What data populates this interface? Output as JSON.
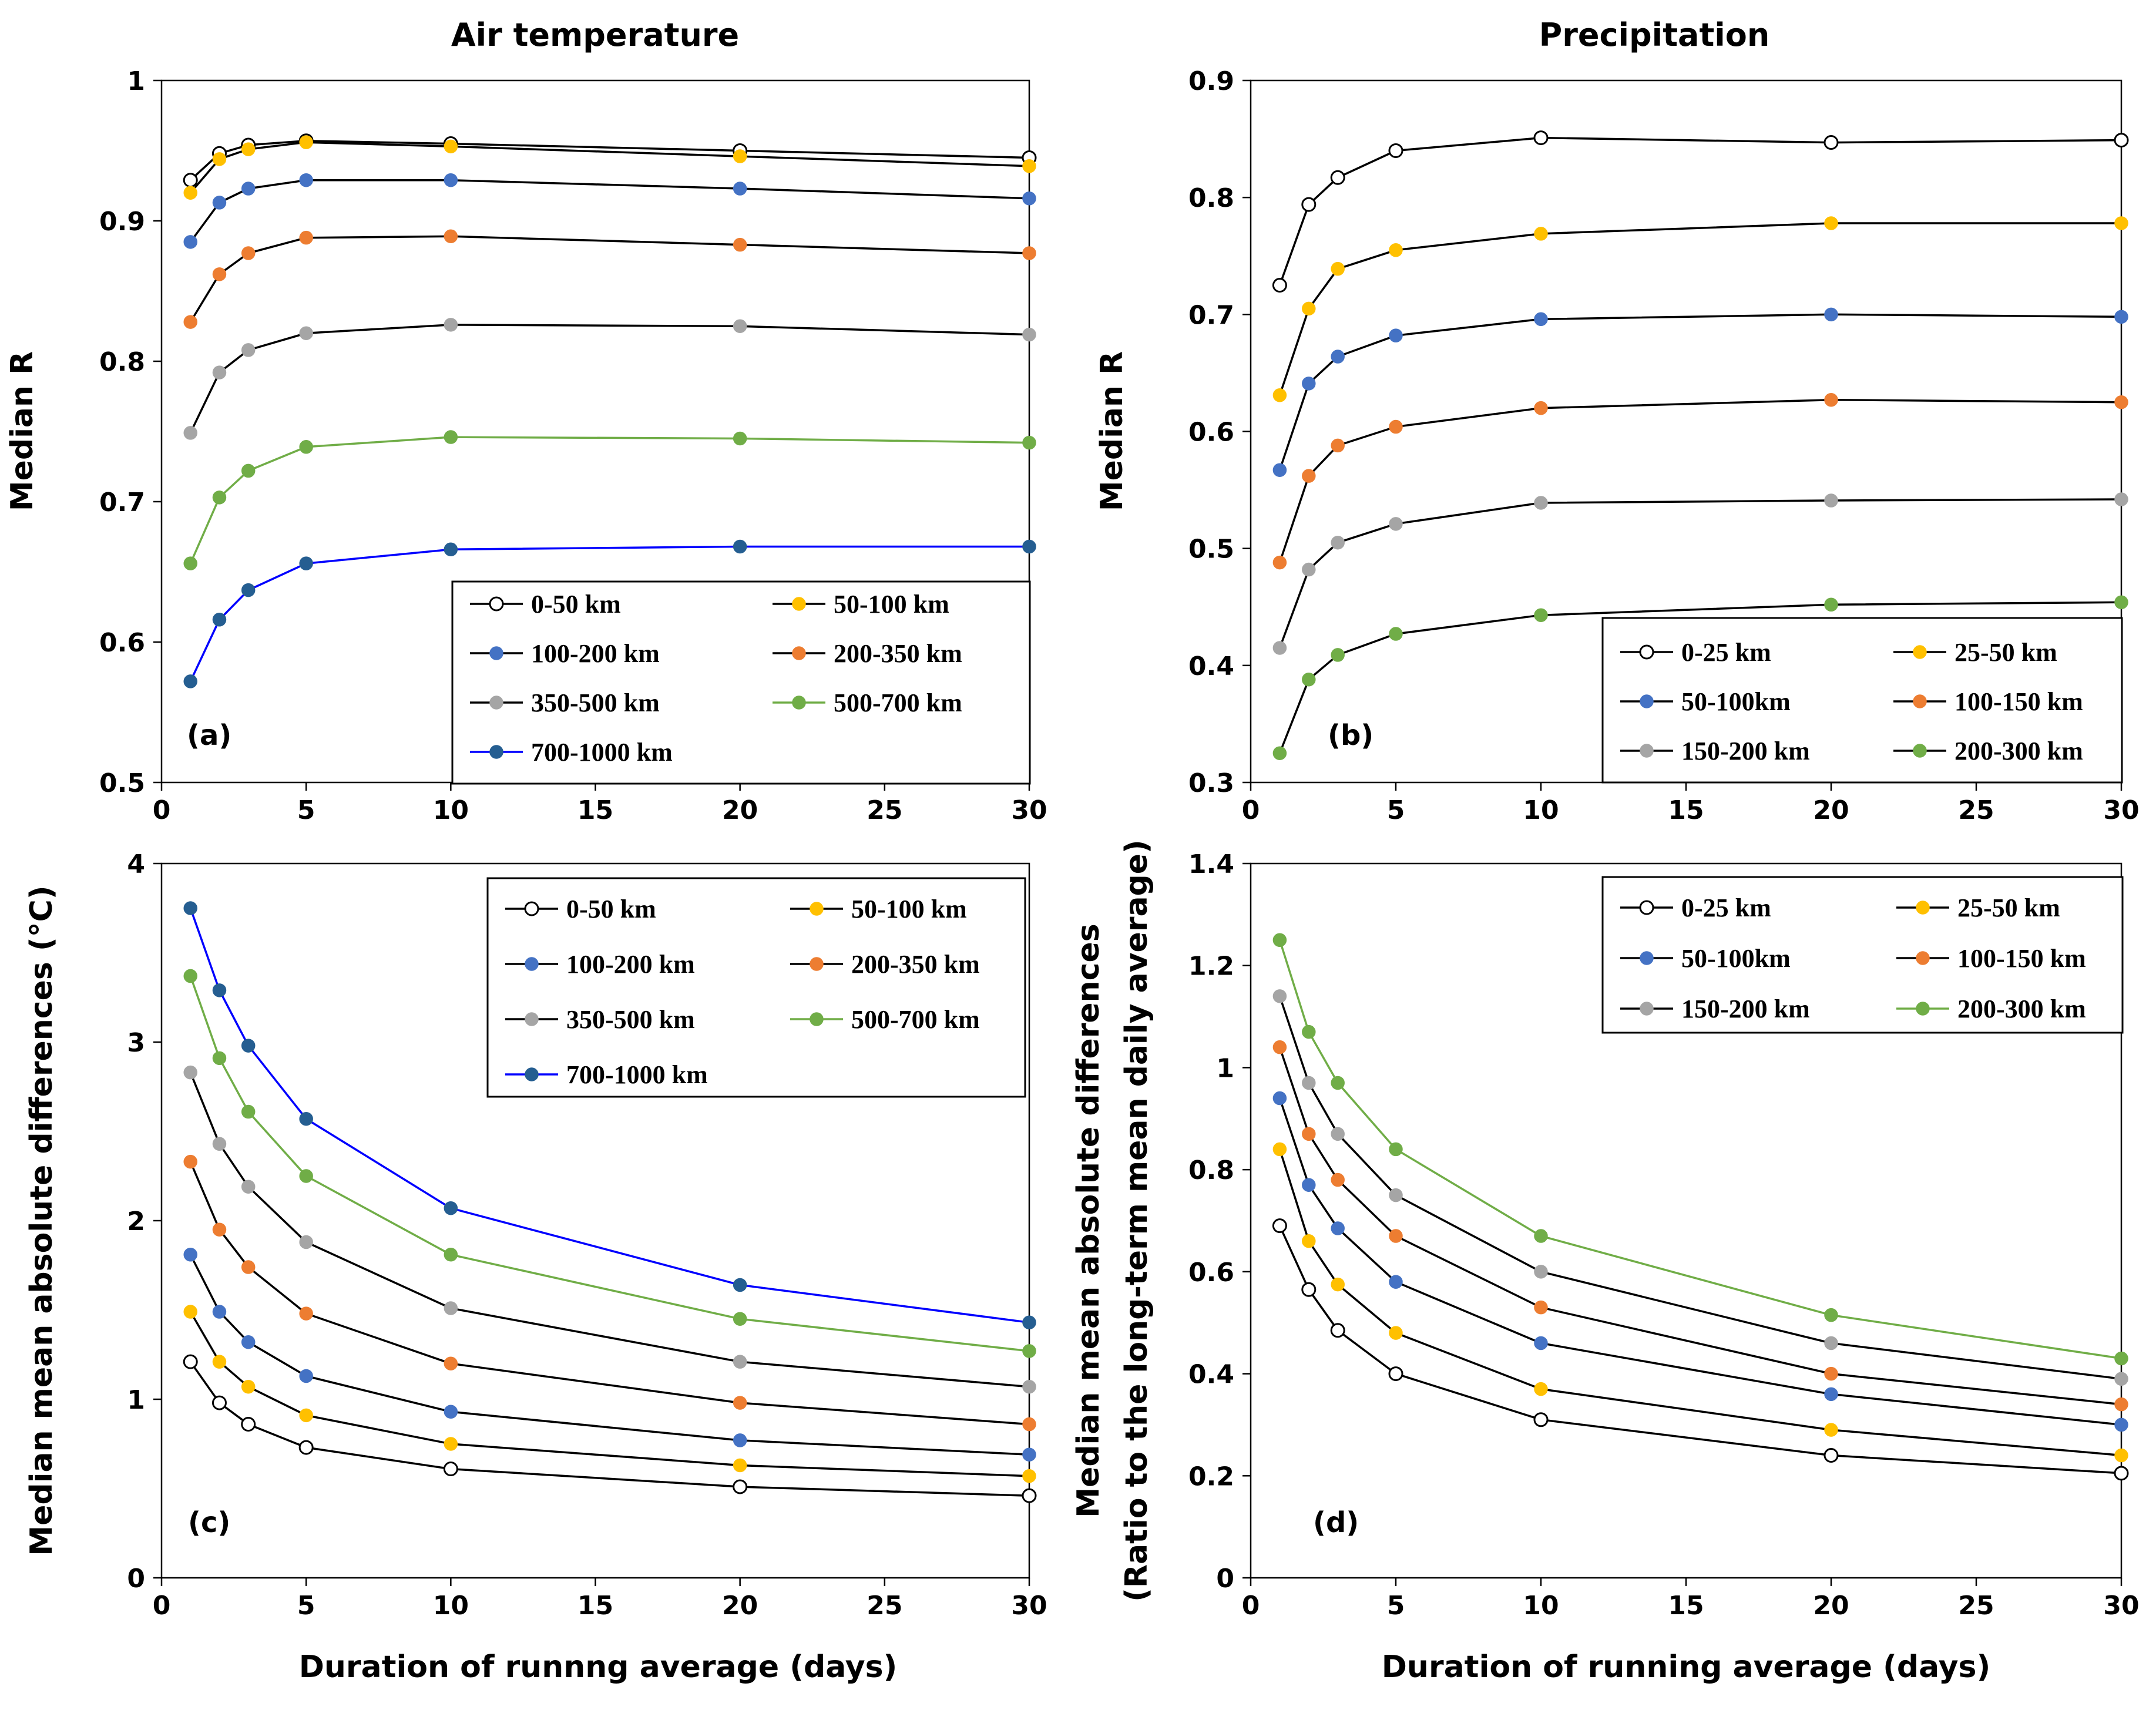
{
  "colors": {
    "open": "#ffffff",
    "yellow": "#ffc000",
    "blue": "#4472c4",
    "orange": "#ed7d31",
    "gray": "#a5a5a5",
    "green": "#70ad47",
    "darkblue": "#255e91",
    "brightblue": "#0000ff"
  },
  "chart_data": [
    {
      "id": "a",
      "type": "line",
      "title": "Air temperature",
      "panel_label": "(a)",
      "xlabel": "",
      "ylabel": "Median R",
      "xlim": [
        0,
        30
      ],
      "ylim": [
        0.5,
        1
      ],
      "xticks": [
        0,
        5,
        10,
        15,
        20,
        25,
        30
      ],
      "xtick_labels": [
        "0",
        "5",
        "10",
        "15",
        "20",
        "25",
        "30"
      ],
      "yticks": [
        0.5,
        0.6,
        0.7,
        0.8,
        0.9,
        1
      ],
      "ytick_labels": [
        "0.5",
        "0.6",
        "0.7",
        "0.8",
        "0.9",
        "1"
      ],
      "legend": "bottom-right",
      "x": [
        1,
        2,
        3,
        5,
        10,
        20,
        30
      ],
      "series": [
        {
          "name": "0-50 km",
          "marker": "open",
          "line": "#000000",
          "values": [
            0.929,
            0.948,
            0.954,
            0.957,
            0.955,
            0.95,
            0.945
          ]
        },
        {
          "name": "50-100 km",
          "marker": "yellow",
          "line": "#000000",
          "values": [
            0.92,
            0.944,
            0.951,
            0.956,
            0.953,
            0.946,
            0.939
          ]
        },
        {
          "name": "100-200 km",
          "marker": "blue",
          "line": "#000000",
          "values": [
            0.885,
            0.913,
            0.923,
            0.929,
            0.929,
            0.923,
            0.916
          ]
        },
        {
          "name": "200-350 km",
          "marker": "orange",
          "line": "#000000",
          "values": [
            0.828,
            0.862,
            0.877,
            0.888,
            0.889,
            0.883,
            0.877
          ]
        },
        {
          "name": "350-500 km",
          "marker": "gray",
          "line": "#000000",
          "values": [
            0.749,
            0.792,
            0.808,
            0.82,
            0.826,
            0.825,
            0.819
          ]
        },
        {
          "name": "500-700 km",
          "marker": "green",
          "line": "#70ad47",
          "values": [
            0.656,
            0.703,
            0.722,
            0.739,
            0.746,
            0.745,
            0.742
          ]
        },
        {
          "name": "700-1000 km",
          "marker": "darkblue",
          "line": "#0000ff",
          "values": [
            0.572,
            0.616,
            0.637,
            0.656,
            0.666,
            0.668,
            0.668
          ]
        }
      ]
    },
    {
      "id": "b",
      "type": "line",
      "title": "Precipitation",
      "panel_label": "(b)",
      "xlabel": "",
      "ylabel": "Median R",
      "xlim": [
        0,
        30
      ],
      "ylim": [
        0.3,
        0.9
      ],
      "xticks": [
        0,
        5,
        10,
        15,
        20,
        25,
        30
      ],
      "xtick_labels": [
        "0",
        "5",
        "10",
        "15",
        "20",
        "25",
        "30"
      ],
      "yticks": [
        0.3,
        0.4,
        0.5,
        0.6,
        0.7,
        0.8,
        0.9
      ],
      "ytick_labels": [
        "0.3",
        "0.4",
        "0.5",
        "0.6",
        "0.7",
        "0.8",
        "0.9"
      ],
      "legend": "bottom-right",
      "x": [
        1,
        2,
        3,
        5,
        10,
        20,
        30
      ],
      "series": [
        {
          "name": "0-25 km",
          "marker": "open",
          "line": "#000000",
          "values": [
            0.725,
            0.794,
            0.817,
            0.84,
            0.851,
            0.847,
            0.849
          ]
        },
        {
          "name": "25-50 km",
          "marker": "yellow",
          "line": "#000000",
          "values": [
            0.631,
            0.705,
            0.739,
            0.755,
            0.769,
            0.778,
            0.778
          ]
        },
        {
          "name": "50-100km",
          "marker": "blue",
          "line": "#000000",
          "values": [
            0.567,
            0.641,
            0.664,
            0.682,
            0.696,
            0.7,
            0.698
          ]
        },
        {
          "name": "100-150 km",
          "marker": "orange",
          "line": "#000000",
          "values": [
            0.488,
            0.562,
            0.588,
            0.604,
            0.62,
            0.627,
            0.625
          ]
        },
        {
          "name": "150-200 km",
          "marker": "gray",
          "line": "#000000",
          "values": [
            0.415,
            0.482,
            0.505,
            0.521,
            0.539,
            0.541,
            0.542
          ]
        },
        {
          "name": "200-300 km",
          "marker": "green",
          "line": "#000000",
          "values": [
            0.325,
            0.388,
            0.409,
            0.427,
            0.443,
            0.452,
            0.454
          ]
        }
      ]
    },
    {
      "id": "c",
      "type": "line",
      "title": "",
      "panel_label": "(c)",
      "xlabel": "Duration of runnng average (days)",
      "ylabel": "Median mean absolute differences (°C)",
      "xlim": [
        0,
        30
      ],
      "ylim": [
        0,
        4
      ],
      "xticks": [
        0,
        5,
        10,
        15,
        20,
        25,
        30
      ],
      "xtick_labels": [
        "0",
        "5",
        "10",
        "15",
        "20",
        "25",
        "30"
      ],
      "yticks": [
        0,
        1,
        2,
        3,
        4
      ],
      "ytick_labels": [
        "0",
        "1",
        "2",
        "3",
        "4"
      ],
      "legend": "top-right",
      "x": [
        1,
        2,
        3,
        5,
        10,
        20,
        30
      ],
      "series": [
        {
          "name": "0-50 km",
          "marker": "open",
          "line": "#000000",
          "values": [
            1.21,
            0.98,
            0.86,
            0.73,
            0.61,
            0.51,
            0.46
          ]
        },
        {
          "name": "50-100 km",
          "marker": "yellow",
          "line": "#000000",
          "values": [
            1.49,
            1.21,
            1.07,
            0.91,
            0.75,
            0.63,
            0.57
          ]
        },
        {
          "name": "100-200 km",
          "marker": "blue",
          "line": "#000000",
          "values": [
            1.81,
            1.49,
            1.32,
            1.13,
            0.93,
            0.77,
            0.69
          ]
        },
        {
          "name": "200-350 km",
          "marker": "orange",
          "line": "#000000",
          "values": [
            2.33,
            1.95,
            1.74,
            1.48,
            1.2,
            0.98,
            0.86
          ]
        },
        {
          "name": "350-500 km",
          "marker": "gray",
          "line": "#000000",
          "values": [
            2.83,
            2.43,
            2.19,
            1.88,
            1.51,
            1.21,
            1.07
          ]
        },
        {
          "name": "500-700 km",
          "marker": "green",
          "line": "#70ad47",
          "values": [
            3.37,
            2.91,
            2.61,
            2.25,
            1.81,
            1.45,
            1.27
          ]
        },
        {
          "name": "700-1000 km",
          "marker": "darkblue",
          "line": "#0000ff",
          "values": [
            3.75,
            3.29,
            2.98,
            2.57,
            2.07,
            1.64,
            1.43
          ]
        }
      ]
    },
    {
      "id": "d",
      "type": "line",
      "title": "",
      "panel_label": "(d)",
      "xlabel": "Duration of running average (days)",
      "ylabel": "Median mean absolute differences",
      "ylabel2": "(Ratio to the long-term mean daily average)",
      "xlim": [
        0,
        30
      ],
      "ylim": [
        0,
        1.4
      ],
      "xticks": [
        0,
        5,
        10,
        15,
        20,
        25,
        30
      ],
      "xtick_labels": [
        "0",
        "5",
        "10",
        "15",
        "20",
        "25",
        "30"
      ],
      "yticks": [
        0,
        0.2,
        0.4,
        0.6,
        0.8,
        1,
        1.2,
        1.4
      ],
      "ytick_labels": [
        "0",
        "0.2",
        "0.4",
        "0.6",
        "0.8",
        "1",
        "1.2",
        "1.4"
      ],
      "legend": "top-right",
      "x": [
        1,
        2,
        3,
        5,
        10,
        20,
        30
      ],
      "series": [
        {
          "name": "0-25 km",
          "marker": "open",
          "line": "#000000",
          "values": [
            0.69,
            0.565,
            0.485,
            0.4,
            0.31,
            0.24,
            0.205
          ]
        },
        {
          "name": "25-50 km",
          "marker": "yellow",
          "line": "#000000",
          "values": [
            0.84,
            0.66,
            0.575,
            0.48,
            0.37,
            0.29,
            0.24
          ]
        },
        {
          "name": "50-100km",
          "marker": "blue",
          "line": "#000000",
          "values": [
            0.94,
            0.77,
            0.685,
            0.58,
            0.46,
            0.36,
            0.3
          ]
        },
        {
          "name": "100-150 km",
          "marker": "orange",
          "line": "#000000",
          "values": [
            1.04,
            0.87,
            0.78,
            0.67,
            0.53,
            0.4,
            0.34
          ]
        },
        {
          "name": "150-200 km",
          "marker": "gray",
          "line": "#000000",
          "values": [
            1.14,
            0.97,
            0.87,
            0.75,
            0.6,
            0.46,
            0.39
          ]
        },
        {
          "name": "200-300 km",
          "marker": "green",
          "line": "#70ad47",
          "values": [
            1.25,
            1.07,
            0.97,
            0.84,
            0.67,
            0.515,
            0.43
          ]
        }
      ]
    }
  ]
}
